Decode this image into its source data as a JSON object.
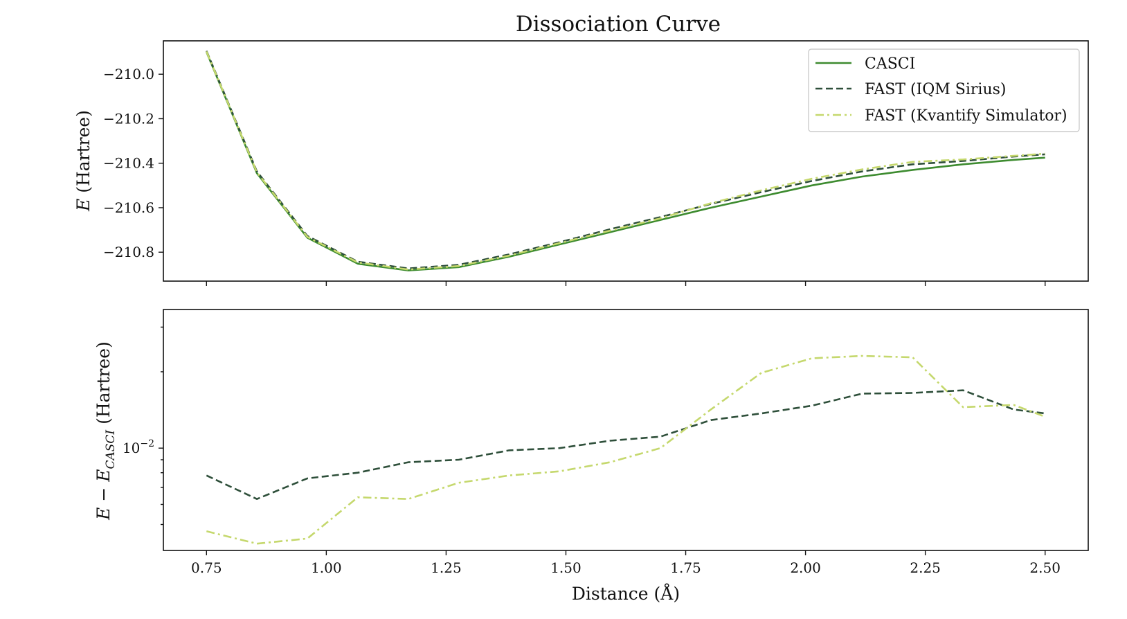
{
  "chart_data": {
    "title": "Dissociation Curve",
    "xlabel": "Distance (Å)",
    "x": [
      0.75,
      0.8552,
      0.9605,
      1.0658,
      1.1711,
      1.2763,
      1.3816,
      1.4868,
      1.5921,
      1.6974,
      1.8026,
      1.9079,
      2.0132,
      2.1184,
      2.2237,
      2.3289,
      2.4342,
      2.5
    ],
    "xticks": [
      "0.75",
      "1.00",
      "1.25",
      "1.50",
      "1.75",
      "2.00",
      "2.25",
      "2.50"
    ],
    "xlim": [
      0.66,
      2.59
    ],
    "panels": [
      {
        "type": "line",
        "ylabel_var": "E",
        "ylabel_unit": " (Hartree)",
        "ylim": [
          -210.93,
          -209.85
        ],
        "yticks": [
          "−210.0",
          "−210.2",
          "−210.4",
          "−210.6",
          "−210.8"
        ],
        "ytick_values": [
          -210.0,
          -210.2,
          -210.4,
          -210.6,
          -210.8
        ],
        "series": [
          {
            "name": "CASCI",
            "color": "#3d8b2f",
            "style": "solid",
            "values": [
              -209.9,
              -210.445,
              -210.735,
              -210.852,
              -210.882,
              -210.867,
              -210.82,
              -210.765,
              -210.71,
              -210.655,
              -210.6,
              -210.55,
              -210.5,
              -210.46,
              -210.43,
              -210.405,
              -210.385,
              -210.375
            ]
          },
          {
            "name": "FAST (IQM Sirius)",
            "color": "#2e4f3a",
            "style": "dashed",
            "values": [
              -209.895,
              -210.437,
              -210.727,
              -210.843,
              -210.873,
              -210.857,
              -210.81,
              -210.755,
              -210.697,
              -210.642,
              -210.583,
              -210.53,
              -210.48,
              -210.437,
              -210.405,
              -210.39,
              -210.37,
              -210.36
            ]
          },
          {
            "name": "FAST (Kvantify Simulator)",
            "color": "#c5d86d",
            "style": "dashdot",
            "values": [
              -209.898,
              -210.441,
              -210.731,
              -210.846,
              -210.878,
              -210.862,
              -210.815,
              -210.759,
              -210.703,
              -210.648,
              -210.58,
              -210.522,
              -210.47,
              -210.428,
              -210.394,
              -210.383,
              -210.367,
              -210.357
            ]
          }
        ]
      },
      {
        "type": "line",
        "yscale": "log",
        "ylabel_main": "E − E",
        "ylabel_sub": "CASCI",
        "ylabel_unit": " (Hartree)",
        "ylim": [
          0.00395,
          0.0352
        ],
        "yticks_major": [
          0.01
        ],
        "ytick_label_base": "10",
        "ytick_label_exp": "−2",
        "yticks_minor": [
          0.005,
          0.006,
          0.007,
          0.008,
          0.009,
          0.02,
          0.03
        ],
        "series": [
          {
            "name": "FAST (IQM Sirius)",
            "color": "#2e4f3a",
            "style": "dashed",
            "values": [
              0.0078,
              0.0063,
              0.0076,
              0.008,
              0.0088,
              0.009,
              0.0098,
              0.01,
              0.0107,
              0.0111,
              0.0129,
              0.0137,
              0.0147,
              0.0164,
              0.0165,
              0.0169,
              0.0142,
              0.0137
            ]
          },
          {
            "name": "FAST (Kvantify Simulator)",
            "color": "#c5d86d",
            "style": "dashdot",
            "values": [
              0.0047,
              0.0042,
              0.0044,
              0.0064,
              0.0063,
              0.0073,
              0.0078,
              0.0081,
              0.0088,
              0.01,
              0.0142,
              0.0198,
              0.0226,
              0.0231,
              0.0228,
              0.0145,
              0.0148,
              0.0133
            ]
          }
        ]
      }
    ],
    "legend": {
      "placement": "top-right",
      "panel": 0
    }
  }
}
